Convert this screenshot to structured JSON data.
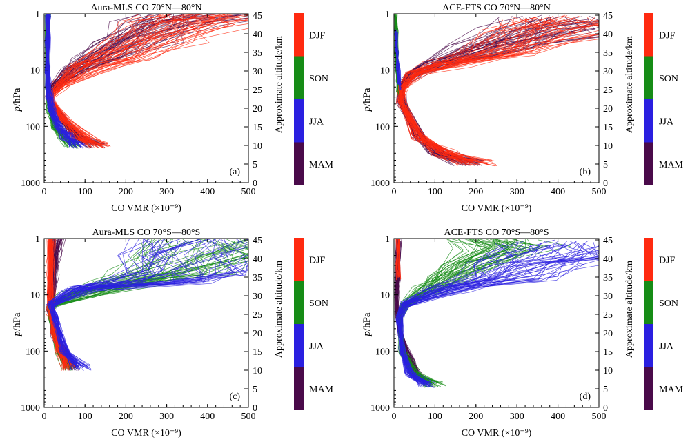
{
  "figure": {
    "x_axis_label": "CO VMR (×10⁻⁹)",
    "y_axis_label_italic": "p",
    "y_axis_label_rest": "/hPa",
    "right_axis_label": "Approximate altitude/km"
  },
  "season_colors": {
    "DJF": "#ff2a10",
    "SON": "#168c16",
    "JJA": "#2a1fe0",
    "MAM": "#4a0a4a"
  },
  "colorbar_labels": [
    "DJF",
    "SON",
    "JJA",
    "MAM"
  ],
  "chart_data": [
    {
      "type": "line",
      "title": "Aura-MLS CO 70°N—80°N",
      "panel_label": "(a)",
      "xlabel": "CO VMR (×10⁻⁹)",
      "ylabel": "p/hPa",
      "y2label": "Approximate altitude/km",
      "xlim": [
        0,
        500
      ],
      "xticks": [
        0,
        100,
        200,
        300,
        400,
        500
      ],
      "ylim_hpa": [
        1000,
        1
      ],
      "yscale": "log",
      "yticks_hpa": [
        1,
        10,
        100,
        1000
      ],
      "y2ticks_km": [
        0,
        5,
        10,
        15,
        20,
        25,
        30,
        35,
        40,
        45
      ],
      "series": [
        {
          "name": "DJF",
          "x": [
            500,
            400,
            300,
            200,
            120,
            40,
            15,
            45,
            90,
            130
          ],
          "y_hpa": [
            1,
            1.5,
            3,
            6,
            9,
            20,
            30,
            70,
            150,
            220
          ]
        },
        {
          "name": "SON",
          "x": [
            10,
            8,
            8,
            10,
            12,
            15,
            25,
            45,
            70
          ],
          "y_hpa": [
            1,
            3,
            10,
            20,
            30,
            50,
            100,
            150,
            220
          ]
        },
        {
          "name": "JJA",
          "x": [
            12,
            10,
            10,
            12,
            15,
            20,
            35,
            55,
            80
          ],
          "y_hpa": [
            1,
            3,
            10,
            20,
            30,
            50,
            100,
            150,
            220
          ]
        },
        {
          "name": "MAM",
          "x": [
            480,
            350,
            250,
            160,
            90,
            30,
            15,
            40,
            80,
            120
          ],
          "y_hpa": [
            1,
            1.5,
            3,
            6,
            10,
            20,
            30,
            70,
            150,
            220
          ]
        }
      ]
    },
    {
      "type": "line",
      "title": "ACE-FTS CO 70°N—80°N",
      "panel_label": "(b)",
      "xlabel": "CO VMR (×10⁻⁹)",
      "ylabel": "p/hPa",
      "y2label": "Approximate altitude/km",
      "xlim": [
        0,
        500
      ],
      "xticks": [
        0,
        100,
        200,
        300,
        400,
        500
      ],
      "ylim_hpa": [
        1000,
        1
      ],
      "yscale": "log",
      "yticks_hpa": [
        1,
        10,
        100,
        1000
      ],
      "y2ticks_km": [
        0,
        5,
        10,
        15,
        20,
        25,
        30,
        35,
        40,
        45
      ],
      "series": [
        {
          "name": "DJF",
          "x": [
            500,
            450,
            300,
            150,
            60,
            25,
            20,
            60,
            120,
            200
          ],
          "y_hpa": [
            1.2,
            2,
            5,
            8,
            12,
            20,
            35,
            150,
            300,
            450
          ]
        },
        {
          "name": "SON",
          "x": [
            5,
            6,
            7,
            8,
            10,
            12
          ],
          "y_hpa": [
            1,
            2,
            5,
            10,
            15,
            25
          ]
        },
        {
          "name": "JJA",
          "x": [
            8,
            8,
            10,
            12
          ],
          "y_hpa": [
            2,
            5,
            10,
            20
          ]
        },
        {
          "name": "MAM",
          "x": [
            500,
            420,
            260,
            120,
            50,
            20,
            20,
            60,
            110,
            180
          ],
          "y_hpa": [
            1.2,
            2,
            4,
            8,
            12,
            20,
            35,
            150,
            300,
            450
          ]
        }
      ]
    },
    {
      "type": "line",
      "title": "Aura-MLS CO 70°S—80°S",
      "panel_label": "(c)",
      "xlabel": "CO VMR (×10⁻⁹)",
      "ylabel": "p/hPa",
      "y2label": "Approximate altitude/km",
      "xlim": [
        0,
        500
      ],
      "xticks": [
        0,
        100,
        200,
        300,
        400,
        500
      ],
      "ylim_hpa": [
        1000,
        1
      ],
      "yscale": "log",
      "yticks_hpa": [
        1,
        10,
        100,
        1000
      ],
      "y2ticks_km": [
        0,
        5,
        10,
        15,
        20,
        25,
        30,
        35,
        40,
        45
      ],
      "series": [
        {
          "name": "DJF",
          "x": [
            20,
            18,
            18,
            20,
            25,
            40,
            60
          ],
          "y_hpa": [
            1,
            3,
            10,
            20,
            50,
            100,
            200
          ]
        },
        {
          "name": "SON",
          "x": [
            500,
            450,
            350,
            250,
            100,
            20,
            15,
            40,
            60
          ],
          "y_hpa": [
            1,
            2,
            4,
            6,
            10,
            15,
            25,
            100,
            200
          ]
        },
        {
          "name": "JJA",
          "x": [
            480,
            420,
            400,
            300,
            100,
            20,
            25,
            50,
            90
          ],
          "y_hpa": [
            1,
            2,
            4,
            6,
            8,
            15,
            25,
            100,
            200
          ]
        },
        {
          "name": "MAM",
          "x": [
            40,
            30,
            25,
            22,
            20,
            25,
            45,
            70
          ],
          "y_hpa": [
            1,
            2,
            5,
            10,
            20,
            50,
            100,
            200
          ]
        }
      ]
    },
    {
      "type": "line",
      "title": "ACE-FTS CO 70°S—80°S",
      "panel_label": "(d)",
      "xlabel": "CO VMR (×10⁻⁹)",
      "ylabel": "p/hPa",
      "y2label": "Approximate altitude/km",
      "xlim": [
        0,
        500
      ],
      "xticks": [
        0,
        100,
        200,
        300,
        400,
        500
      ],
      "ylim_hpa": [
        1000,
        1
      ],
      "yscale": "log",
      "yticks_hpa": [
        1,
        10,
        100,
        1000
      ],
      "y2ticks_km": [
        0,
        5,
        10,
        15,
        20,
        25,
        30,
        35,
        40,
        45
      ],
      "series": [
        {
          "name": "DJF",
          "x": [
            10,
            10,
            10
          ],
          "y_hpa": [
            1,
            3,
            5
          ]
        },
        {
          "name": "SON",
          "x": [
            250,
            300,
            200,
            150,
            100,
            30,
            15,
            20,
            50,
            100
          ],
          "y_hpa": [
            1,
            1.5,
            3,
            5,
            8,
            15,
            25,
            100,
            250,
            400
          ]
        },
        {
          "name": "JJA",
          "x": [
            500,
            450,
            380,
            300,
            150,
            30,
            15,
            20,
            40,
            80
          ],
          "y_hpa": [
            1.2,
            2,
            3,
            5,
            8,
            15,
            25,
            100,
            250,
            400
          ]
        },
        {
          "name": "MAM",
          "x": [
            15,
            12,
            10,
            8,
            10,
            15,
            40,
            60
          ],
          "y_hpa": [
            1,
            2,
            5,
            10,
            20,
            50,
            150,
            300
          ]
        }
      ]
    }
  ]
}
